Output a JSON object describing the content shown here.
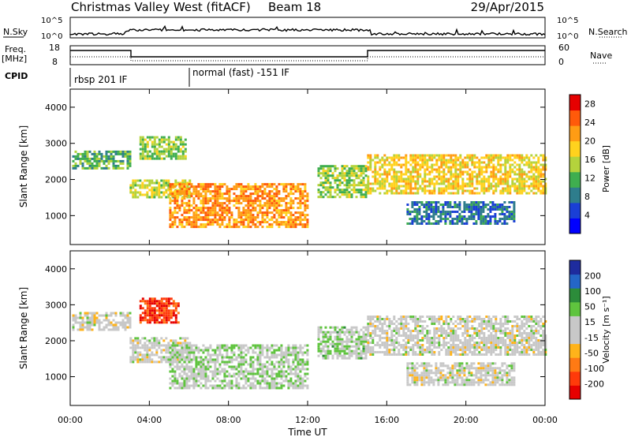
{
  "header": {
    "title": "Christmas Valley West (fitACF)",
    "beam": "Beam 18",
    "date": "29/Apr/2015"
  },
  "top_panels": {
    "nsky_label": "N.Sky",
    "nsearch_label": "N.Search",
    "noise_ticks": [
      "10^5",
      "10^0"
    ],
    "freq_label": "Freq.",
    "freq_unit": "[MHz]",
    "freq_ticks": [
      "18",
      "8"
    ],
    "nave_label": "Nave",
    "nave_ticks": [
      "60",
      "0"
    ],
    "cpid_label": "CPID",
    "cpid_modes": [
      {
        "label": "rbsp 201 IF",
        "start_hour": 0
      },
      {
        "label": "normal (fast) -151 IF",
        "start_hour": 6
      }
    ]
  },
  "colors": {
    "power_scale": [
      "#0000ff",
      "#1a3fd6",
      "#2e7d8c",
      "#3fae4f",
      "#b4d33c",
      "#ffd21e",
      "#ff9c14",
      "#ff5a0a",
      "#e60000"
    ],
    "velocity_scale": [
      "#1e2c9e",
      "#2466c7",
      "#2c8c3a",
      "#5fc43e",
      "#c8c8c8",
      "#c8c8c8",
      "#ffb31a",
      "#ff7a14",
      "#ff3a0a",
      "#e60000"
    ]
  },
  "chart_data": [
    {
      "type": "heatmap",
      "name": "power",
      "ylabel": "Slant Range [km]",
      "xlabel": "Time UT",
      "xlim": [
        0,
        24
      ],
      "ylim": [
        200,
        4500
      ],
      "x_ticks": [
        "00:00",
        "04:00",
        "08:00",
        "12:00",
        "16:00",
        "20:00",
        "00:00"
      ],
      "y_ticks": [
        1000,
        2000,
        3000,
        4000
      ],
      "colorbar_label": "Power [dB]",
      "colorbar_ticks": [
        4,
        8,
        12,
        16,
        20,
        24,
        28
      ],
      "colorbar_range": [
        0,
        30
      ],
      "regions": [
        {
          "t": [
            0.1,
            3.0
          ],
          "r": [
            2300,
            2800
          ],
          "v": 12
        },
        {
          "t": [
            3.0,
            6.0
          ],
          "r": [
            1500,
            2000
          ],
          "v": 16
        },
        {
          "t": [
            3.5,
            5.8
          ],
          "r": [
            2600,
            3200
          ],
          "v": 14
        },
        {
          "t": [
            5.0,
            12.0
          ],
          "r": [
            700,
            1900
          ],
          "v": 22
        },
        {
          "t": [
            12.5,
            15.0
          ],
          "r": [
            1500,
            2400
          ],
          "v": 14
        },
        {
          "t": [
            15.0,
            24.0
          ],
          "r": [
            1600,
            2700
          ],
          "v": 18
        },
        {
          "t": [
            17.0,
            22.5
          ],
          "r": [
            800,
            1400
          ],
          "v": 8
        }
      ]
    },
    {
      "type": "heatmap",
      "name": "velocity",
      "ylabel": "Slant Range [km]",
      "xlabel": "Time UT",
      "xlim": [
        0,
        24
      ],
      "ylim": [
        200,
        4500
      ],
      "x_ticks": [
        "00:00",
        "04:00",
        "08:00",
        "12:00",
        "16:00",
        "20:00",
        "00:00"
      ],
      "y_ticks": [
        1000,
        2000,
        3000,
        4000
      ],
      "colorbar_label": "Velocity [m s⁻¹]",
      "colorbar_ticks": [
        200,
        100,
        50,
        15,
        -15,
        -50,
        -100,
        -200
      ],
      "colorbar_range": [
        -250,
        250
      ],
      "regions": [
        {
          "t": [
            0.1,
            3.0
          ],
          "r": [
            2300,
            2800
          ],
          "v": 0
        },
        {
          "t": [
            3.0,
            6.0
          ],
          "r": [
            1400,
            2100
          ],
          "v": 0
        },
        {
          "t": [
            3.5,
            5.5
          ],
          "r": [
            2500,
            3200
          ],
          "v": -180
        },
        {
          "t": [
            5.0,
            12.0
          ],
          "r": [
            700,
            1900
          ],
          "v": 30
        },
        {
          "t": [
            12.5,
            15.0
          ],
          "r": [
            1500,
            2400
          ],
          "v": 40
        },
        {
          "t": [
            15.0,
            24.0
          ],
          "r": [
            1600,
            2700
          ],
          "v": 0
        },
        {
          "t": [
            17.0,
            22.5
          ],
          "r": [
            800,
            1400
          ],
          "v": 0
        }
      ]
    }
  ]
}
